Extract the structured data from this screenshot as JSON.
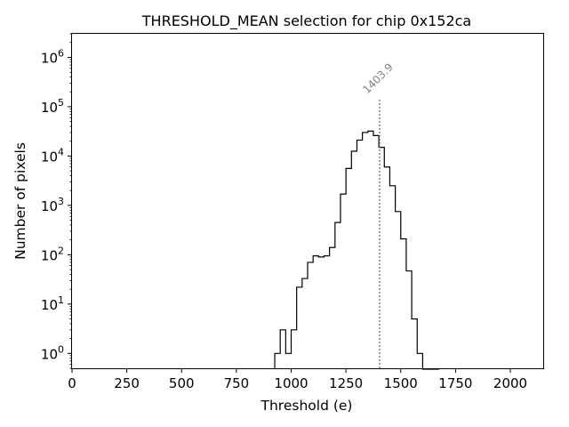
{
  "chart_data": {
    "type": "histogram",
    "title": "THRESHOLD_MEAN selection for chip 0x152ca",
    "xlabel": "Threshold (e)",
    "ylabel": "Number of pixels",
    "xscale": "linear",
    "yscale": "log",
    "xlim": [
      0,
      2150
    ],
    "ylim": [
      0.5,
      3000000
    ],
    "xticks": [
      0,
      250,
      500,
      750,
      1000,
      1250,
      1500,
      1750,
      2000
    ],
    "yticks": [
      {
        "base": "10",
        "exp": "0",
        "value": 1
      },
      {
        "base": "10",
        "exp": "1",
        "value": 10
      },
      {
        "base": "10",
        "exp": "2",
        "value": 100
      },
      {
        "base": "10",
        "exp": "3",
        "value": 1000
      },
      {
        "base": "10",
        "exp": "4",
        "value": 10000
      },
      {
        "base": "10",
        "exp": "5",
        "value": 100000
      },
      {
        "base": "10",
        "exp": "6",
        "value": 1000000
      }
    ],
    "bin_width": 25,
    "bin_edges": [
      925,
      950,
      975,
      1000,
      1025,
      1050,
      1075,
      1100,
      1125,
      1150,
      1175,
      1200,
      1225,
      1250,
      1275,
      1300,
      1325,
      1350,
      1375,
      1400,
      1425,
      1450,
      1475,
      1500,
      1525,
      1550,
      1575,
      1600,
      1625,
      1650,
      1675
    ],
    "counts": [
      1,
      3,
      1,
      3,
      22,
      33,
      70,
      95,
      90,
      95,
      140,
      450,
      1700,
      5600,
      12500,
      21000,
      30000,
      32000,
      26000,
      15000,
      6000,
      2500,
      750,
      210,
      47,
      5,
      1,
      0,
      0,
      0
    ],
    "annotation": {
      "x": 1403.9,
      "label": "1403.9",
      "line_top": 140000
    },
    "colors": {
      "line": "#000000",
      "annotation": "#808080"
    }
  }
}
